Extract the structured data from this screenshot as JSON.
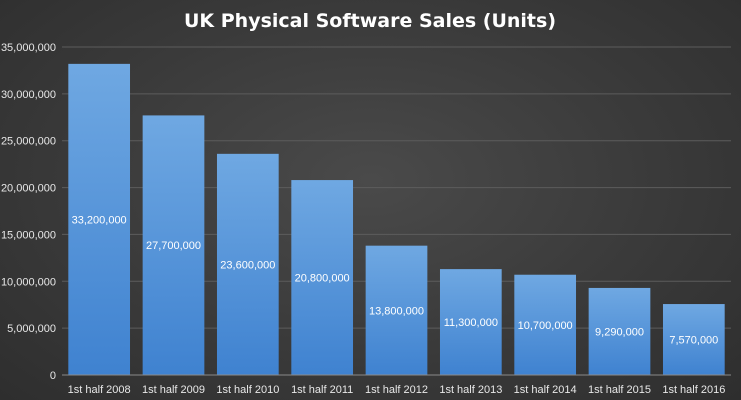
{
  "chart_data": {
    "type": "bar",
    "title": "UK Physical Software Sales (Units)",
    "xlabel": "",
    "ylabel": "",
    "categories": [
      "1st half 2008",
      "1st half 2009",
      "1st half 2010",
      "1st half 2011",
      "1st half 2012",
      "1st half 2013",
      "1st half 2014",
      "1st half 2015",
      "1st half 2016"
    ],
    "values": [
      33200000,
      27700000,
      23600000,
      20800000,
      13800000,
      11300000,
      10700000,
      9290000,
      7570000
    ],
    "data_labels": [
      "33,200,000",
      "27,700,000",
      "23,600,000",
      "20,800,000",
      "13,800,000",
      "11,300,000",
      "10,700,000",
      "9,290,000",
      "7,570,000"
    ],
    "ylim": [
      0,
      35000000
    ],
    "yticks": [
      0,
      5000000,
      10000000,
      15000000,
      20000000,
      25000000,
      30000000,
      35000000
    ],
    "ytick_labels": [
      "0",
      "5,000,000",
      "10,000,000",
      "15,000,000",
      "20,000,000",
      "25,000,000",
      "30,000,000",
      "35,000,000"
    ],
    "grid": true,
    "legend": "none",
    "colors": {
      "bar_top": "#6fa8e2",
      "bar_bottom": "#3f82d0",
      "background": "#3c3c3c",
      "text": "#e8e8e8"
    }
  }
}
